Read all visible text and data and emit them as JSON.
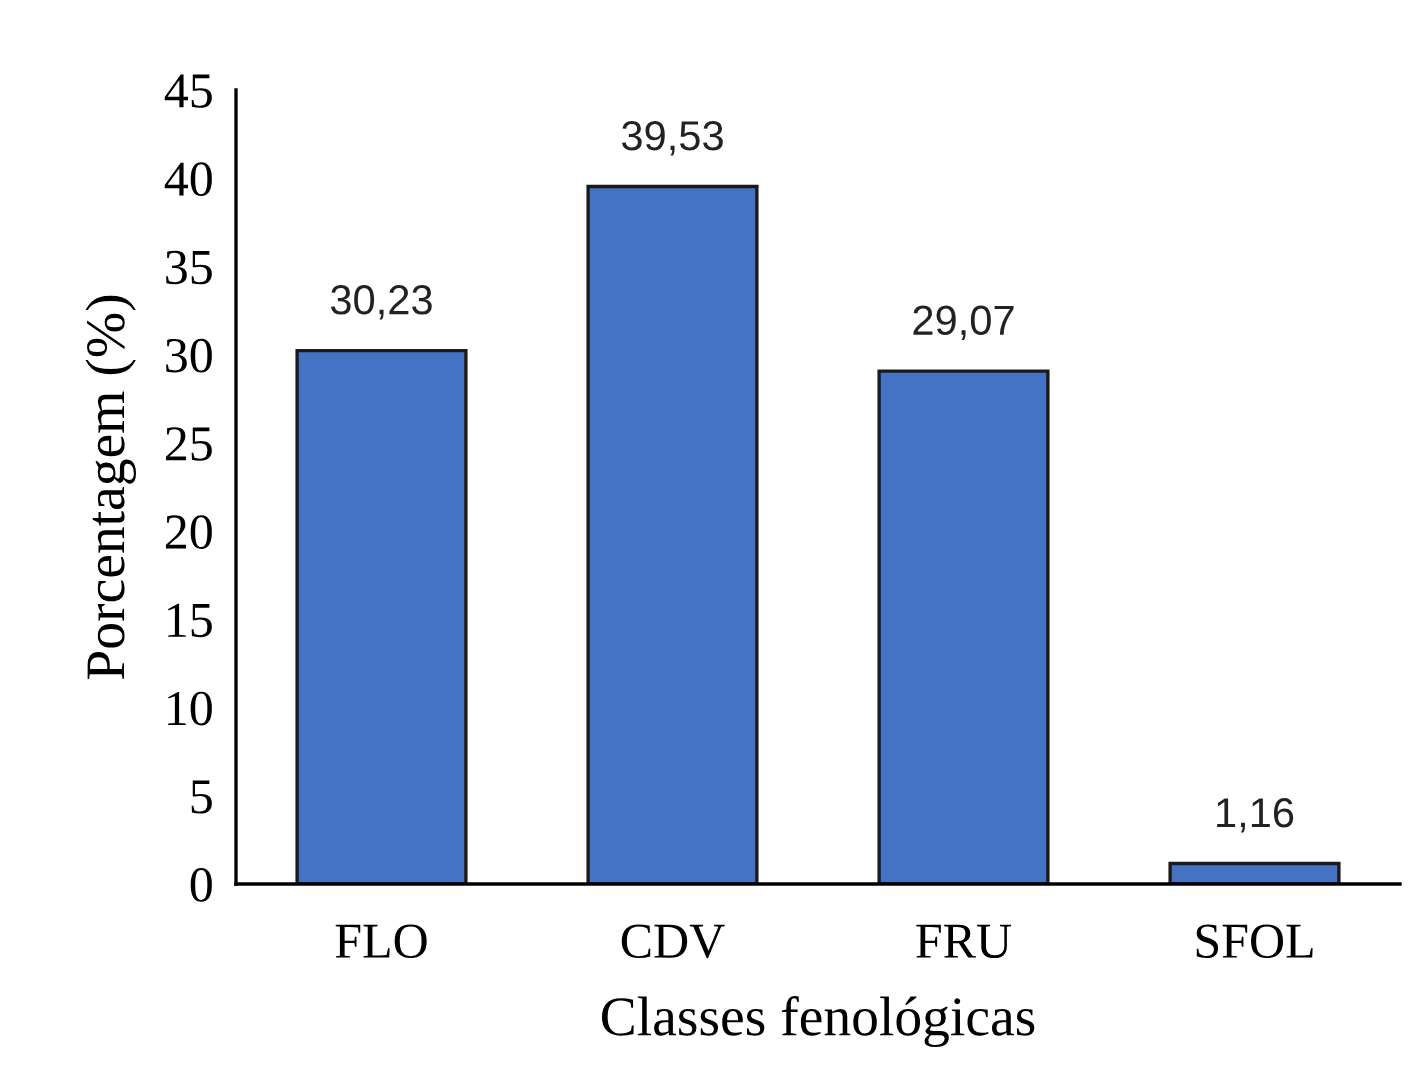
{
  "chart_data": {
    "type": "bar",
    "xlabel": "Classes fenológicas",
    "ylabel": "Porcentagem (%)",
    "categories": [
      "FLO",
      "CDV",
      "FRU",
      "SFOL"
    ],
    "values": [
      30.23,
      39.53,
      29.07,
      1.16
    ],
    "value_labels": [
      "30,23",
      "39,53",
      "29,07",
      "1,16"
    ],
    "color": "#4472c4",
    "ylim": [
      0,
      45
    ],
    "yticks": [
      0,
      5,
      10,
      15,
      20,
      25,
      30,
      35,
      40,
      45
    ],
    "grid": false,
    "legend": false
  }
}
